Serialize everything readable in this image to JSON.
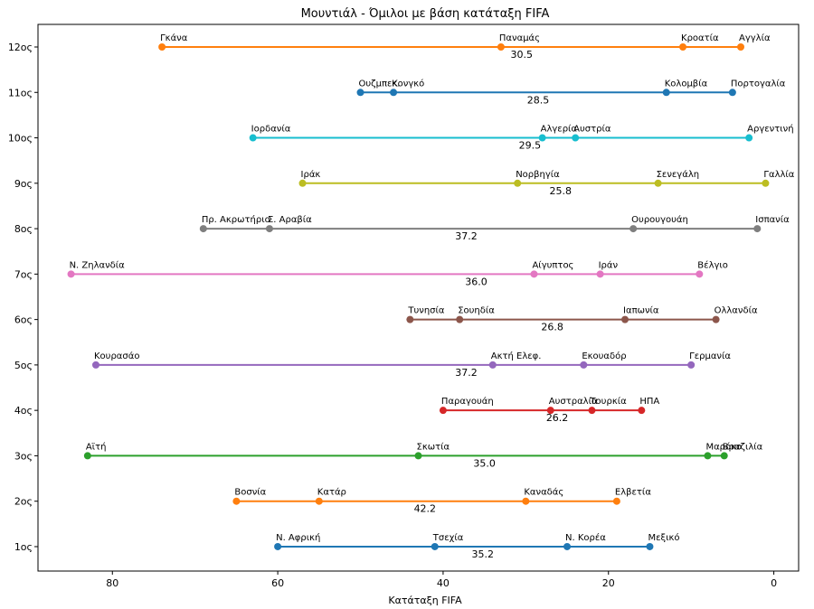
{
  "chart_data": {
    "type": "line",
    "title": "Μουντιάλ - Όμιλοι με βάση κατάταξη FIFA",
    "xlabel": "Κατάταξη FIFA",
    "ylabel": "",
    "xlim": [
      89,
      -3
    ],
    "x_ticks": [
      80,
      60,
      40,
      20,
      0
    ],
    "x_inverted": true,
    "grid": false,
    "groups": [
      {
        "label": "1ος",
        "color": "#1f77b4",
        "mean": "35.2",
        "points": [
          {
            "name": "Ν. Αφρική",
            "x": 60
          },
          {
            "name": "Τσεχία",
            "x": 41
          },
          {
            "name": "Ν. Κορέα",
            "x": 25
          },
          {
            "name": "Μεξικό",
            "x": 15
          }
        ]
      },
      {
        "label": "2ος",
        "color": "#ff7f0e",
        "mean": "42.2",
        "points": [
          {
            "name": "Βοσνία",
            "x": 65
          },
          {
            "name": "Κατάρ",
            "x": 55
          },
          {
            "name": "Καναδάς",
            "x": 30
          },
          {
            "name": "Ελβετία",
            "x": 19
          }
        ]
      },
      {
        "label": "3ος",
        "color": "#2ca02c",
        "mean": "35.0",
        "points": [
          {
            "name": "Αϊτή",
            "x": 83
          },
          {
            "name": "Σκωτία",
            "x": 43
          },
          {
            "name": "Μαρόκο",
            "x": 8
          },
          {
            "name": "Βραζιλία",
            "x": 6
          }
        ]
      },
      {
        "label": "4ος",
        "color": "#d62728",
        "mean": "26.2",
        "points": [
          {
            "name": "Παραγουάη",
            "x": 40
          },
          {
            "name": "Αυστραλία",
            "x": 27
          },
          {
            "name": "Τουρκία",
            "x": 22
          },
          {
            "name": "ΗΠΑ",
            "x": 16
          }
        ]
      },
      {
        "label": "5ος",
        "color": "#9467bd",
        "mean": "37.2",
        "points": [
          {
            "name": "Κουρασάο",
            "x": 82
          },
          {
            "name": "Ακτή Ελεφ.",
            "x": 34
          },
          {
            "name": "Εκουαδόρ",
            "x": 23
          },
          {
            "name": "Γερμανία",
            "x": 10
          }
        ]
      },
      {
        "label": "6ος",
        "color": "#8c564b",
        "mean": "26.8",
        "points": [
          {
            "name": "Τυνησία",
            "x": 44
          },
          {
            "name": "Σουηδία",
            "x": 38
          },
          {
            "name": "Ιαπωνία",
            "x": 18
          },
          {
            "name": "Ολλανδία",
            "x": 7
          }
        ]
      },
      {
        "label": "7ος",
        "color": "#e377c2",
        "mean": "36.0",
        "points": [
          {
            "name": "Ν. Ζηλανδία",
            "x": 85
          },
          {
            "name": "Αίγυπτος",
            "x": 29
          },
          {
            "name": "Ιράν",
            "x": 21
          },
          {
            "name": "Βέλγιο",
            "x": 9
          }
        ]
      },
      {
        "label": "8ος",
        "color": "#7f7f7f",
        "mean": "37.2",
        "points": [
          {
            "name": "Πρ. Ακρωτήριο",
            "x": 69
          },
          {
            "name": "Σ. Αραβία",
            "x": 61
          },
          {
            "name": "Ουρουγουάη",
            "x": 17
          },
          {
            "name": "Ισπανία",
            "x": 2
          }
        ]
      },
      {
        "label": "9ος",
        "color": "#bcbd22",
        "mean": "25.8",
        "points": [
          {
            "name": "Ιράκ",
            "x": 57
          },
          {
            "name": "Νορβηγία",
            "x": 31
          },
          {
            "name": "Σενεγάλη",
            "x": 14
          },
          {
            "name": "Γαλλία",
            "x": 1
          }
        ]
      },
      {
        "label": "10ος",
        "color": "#17becf",
        "mean": "29.5",
        "points": [
          {
            "name": "Ιορδανία",
            "x": 63
          },
          {
            "name": "Αλγερία",
            "x": 28
          },
          {
            "name": "Αυστρία",
            "x": 24
          },
          {
            "name": "Αργεντινή",
            "x": 3
          }
        ]
      },
      {
        "label": "11ος",
        "color": "#1f77b4",
        "mean": "28.5",
        "points": [
          {
            "name": "Ουζμπεκ.",
            "x": 50
          },
          {
            "name": "Κονγκό",
            "x": 46
          },
          {
            "name": "Κολομβία",
            "x": 13
          },
          {
            "name": "Πορτογαλία",
            "x": 5
          }
        ]
      },
      {
        "label": "12ος",
        "color": "#ff7f0e",
        "mean": "30.5",
        "points": [
          {
            "name": "Γκάνα",
            "x": 74
          },
          {
            "name": "Παναμάς",
            "x": 33
          },
          {
            "name": "Κροατία",
            "x": 11
          },
          {
            "name": "Αγγλία",
            "x": 4
          }
        ]
      }
    ]
  }
}
